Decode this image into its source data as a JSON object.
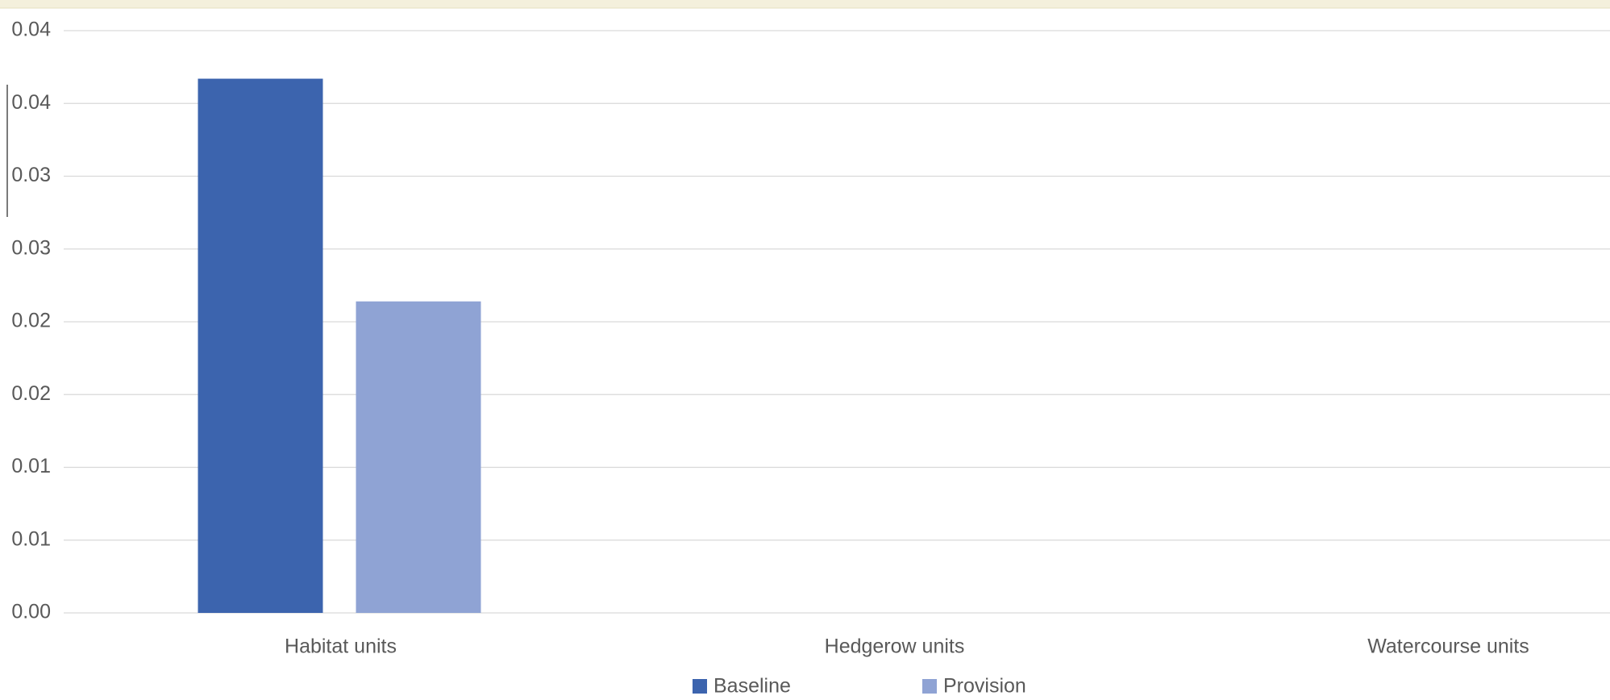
{
  "chart_data": {
    "type": "bar",
    "categories": [
      "Habitat units",
      "Hedgerow units",
      "Watercourse units"
    ],
    "series": [
      {
        "name": "Baseline",
        "color": "#3c64ae",
        "values": [
          0.0367,
          0,
          0
        ]
      },
      {
        "name": "Provision",
        "color": "#8fa3d4",
        "values": [
          0.0214,
          0,
          0
        ]
      }
    ],
    "ylim": [
      0,
      0.04
    ],
    "yticks": [
      {
        "value": 0,
        "label": "0.00"
      },
      {
        "value": 0.005,
        "label": "0.01"
      },
      0.01,
      {
        "value": 0.015,
        "label": "0.02"
      },
      0.02,
      {
        "value": 0.025,
        "label": "0.03"
      },
      0.03,
      {
        "value": 0.035,
        "label": "0.04"
      },
      0.04
    ],
    "grid": true,
    "legend": "bottom"
  }
}
